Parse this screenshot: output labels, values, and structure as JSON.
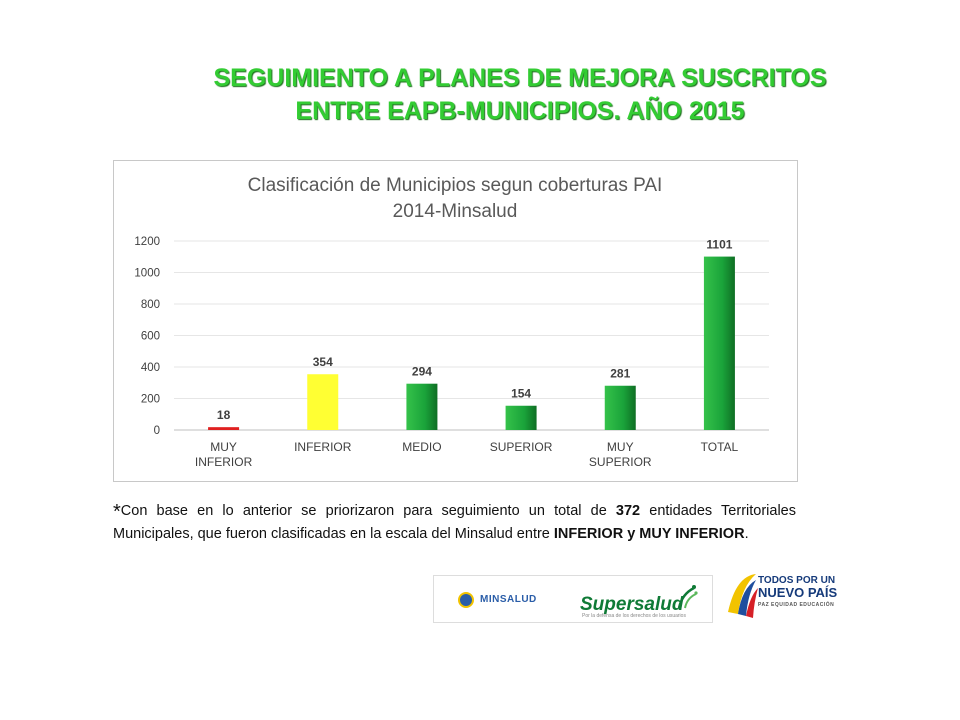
{
  "slide": {
    "title_line1": "SEGUIMIENTO A PLANES DE MEJORA SUSCRITOS",
    "title_line2": "ENTRE EAPB-MUNICIPIOS. AÑO 2015"
  },
  "chart_data": {
    "type": "bar",
    "title_line1": "Clasificación de Municipios segun coberturas PAI",
    "title_line2": "2014-Minsalud",
    "categories": [
      [
        "MUY",
        "INFERIOR"
      ],
      [
        "INFERIOR"
      ],
      [
        "MEDIO"
      ],
      [
        "SUPERIOR"
      ],
      [
        "MUY",
        "SUPERIOR"
      ],
      [
        "TOTAL"
      ]
    ],
    "values": [
      18,
      354,
      294,
      154,
      281,
      1101
    ],
    "bar_colors": [
      "#e02020",
      "#ffff33",
      "#1aa33a",
      "#1aa33a",
      "#1aa33a",
      "#1aa33a"
    ],
    "ylim": [
      0,
      1200
    ],
    "yticks": [
      0,
      200,
      400,
      600,
      800,
      1000,
      1200
    ],
    "grid": true,
    "legend": "none"
  },
  "note": {
    "star": "*",
    "part1": "Con base en lo anterior se priorizaron para seguimiento un total de ",
    "bold_count": "372",
    "part2": " entidades Territoriales Municipales, que fueron clasificadas en la escala del Minsalud entre ",
    "bold_scale": "INFERIOR y MUY INFERIOR",
    "part3": "."
  },
  "logos": {
    "minsalud": "MINSALUD",
    "supersalud": "Supersalud",
    "supersalud_tagline": "Por la defensa de los derechos de los usuarios",
    "todos_line1": "TODOS POR UN",
    "todos_line2": "NUEVO PAÍS",
    "todos_line3": "PAZ  EQUIDAD  EDUCACIÓN"
  }
}
